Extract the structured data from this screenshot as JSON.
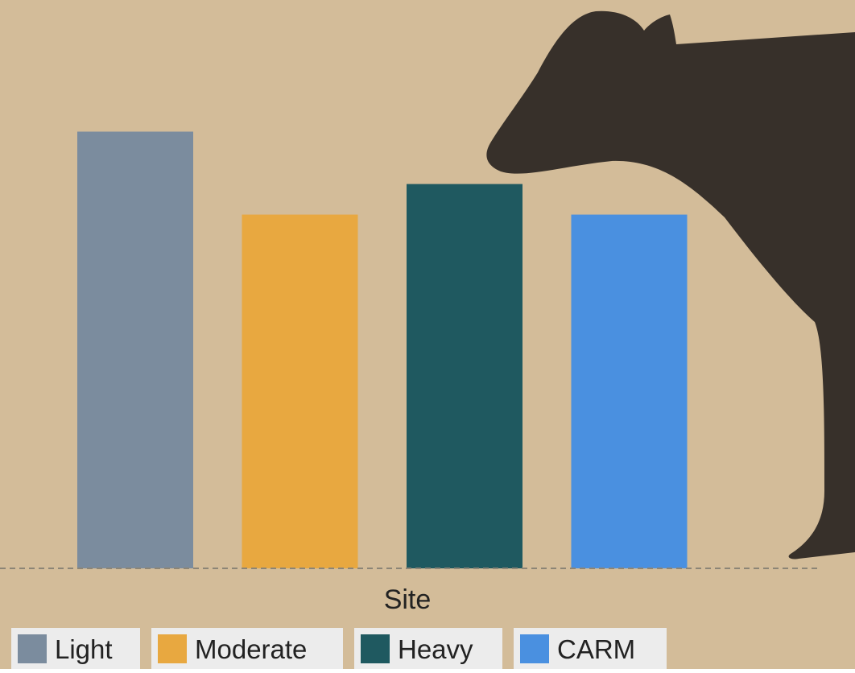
{
  "chart_data": {
    "type": "bar",
    "categories": [
      "Light",
      "Moderate",
      "Heavy",
      "CARM"
    ],
    "values": [
      1.0,
      0.81,
      0.88,
      0.81
    ],
    "colors": [
      "#7B8C9E",
      "#E8A840",
      "#1F5960",
      "#4A90E0"
    ],
    "xlabel": "Site",
    "ylabel": "",
    "ylim": [
      0,
      1.2
    ],
    "grid": false,
    "legend": {
      "placement": "bottom-left",
      "entries": [
        "Light",
        "Moderate",
        "Heavy",
        "CARM"
      ]
    },
    "baseline": "dashed"
  },
  "background": {
    "color": "#D3BC99",
    "decoration": "cow-silhouette-icon",
    "decoration_color": "#37302A"
  }
}
